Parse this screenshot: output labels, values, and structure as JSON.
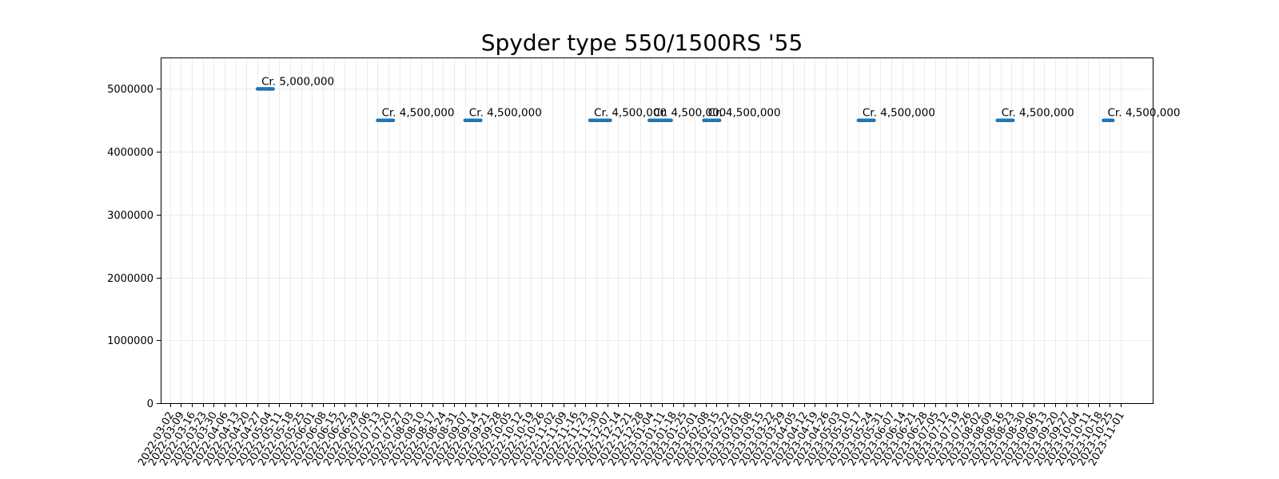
{
  "chart_data": {
    "type": "line",
    "title": "Spyder type 550/1500RS '55",
    "xlabel": "",
    "ylabel": "",
    "ylim": [
      0,
      5500000
    ],
    "y_ticks": [
      0,
      1000000,
      2000000,
      3000000,
      4000000,
      5000000
    ],
    "y_tick_labels": [
      "0",
      "1000000",
      "2000000",
      "3000000",
      "4000000",
      "5000000"
    ],
    "x_tick_labels": [
      "2022-03-02",
      "2022-03-09",
      "2022-03-16",
      "2022-03-23",
      "2022-03-30",
      "2022-04-06",
      "2022-04-13",
      "2022-04-20",
      "2022-04-27",
      "2022-05-04",
      "2022-05-11",
      "2022-05-18",
      "2022-05-25",
      "2022-06-01",
      "2022-06-08",
      "2022-06-15",
      "2022-06-22",
      "2022-06-29",
      "2022-07-06",
      "2022-07-13",
      "2022-07-20",
      "2022-07-27",
      "2022-08-03",
      "2022-08-10",
      "2022-08-17",
      "2022-08-24",
      "2022-08-31",
      "2022-09-07",
      "2022-09-14",
      "2022-09-21",
      "2022-09-28",
      "2022-10-05",
      "2022-10-12",
      "2022-10-19",
      "2022-10-26",
      "2022-11-02",
      "2022-11-09",
      "2022-11-16",
      "2022-11-23",
      "2022-11-30",
      "2022-12-07",
      "2022-12-14",
      "2022-12-21",
      "2022-12-28",
      "2023-01-04",
      "2023-01-11",
      "2023-01-18",
      "2023-01-25",
      "2023-02-01",
      "2023-02-08",
      "2023-02-15",
      "2023-02-22",
      "2023-03-01",
      "2023-03-08",
      "2023-03-15",
      "2023-03-22",
      "2023-03-29",
      "2023-04-05",
      "2023-04-12",
      "2023-04-19",
      "2023-04-26",
      "2023-05-03",
      "2023-05-10",
      "2023-05-17",
      "2023-05-24",
      "2023-05-31",
      "2023-06-07",
      "2023-06-14",
      "2023-06-21",
      "2023-06-28",
      "2023-07-05",
      "2023-07-12",
      "2023-07-19",
      "2023-07-26",
      "2023-08-02",
      "2023-08-09",
      "2023-08-16",
      "2023-08-23",
      "2023-08-30",
      "2023-09-06",
      "2023-09-13",
      "2023-09-20",
      "2023-09-27",
      "2023-10-04",
      "2023-10-11",
      "2023-10-18",
      "2023-10-25",
      "2023-11-01"
    ],
    "xlim": [
      "2022-02-24",
      "2023-11-22"
    ],
    "grid": true,
    "legend": false,
    "series_color": "#1f77b4",
    "segments": [
      {
        "start": "2022-04-27",
        "end": "2022-05-07",
        "value": 5000000,
        "label": "Cr. 5,000,000"
      },
      {
        "start": "2022-07-13",
        "end": "2022-07-23",
        "value": 4500000,
        "label": "Cr. 4,500,000"
      },
      {
        "start": "2022-09-07",
        "end": "2022-09-17",
        "value": 4500000,
        "label": "Cr. 4,500,000"
      },
      {
        "start": "2022-11-26",
        "end": "2022-12-09",
        "value": 4500000,
        "label": "Cr. 4,500,000"
      },
      {
        "start": "2023-01-03",
        "end": "2023-01-17",
        "value": 4500000,
        "label": "Cr. 4,500,000"
      },
      {
        "start": "2023-02-07",
        "end": "2023-02-17",
        "value": 4500000,
        "label": "Cr. 4,500,000"
      },
      {
        "start": "2023-05-17",
        "end": "2023-05-27",
        "value": 4500000,
        "label": "Cr. 4,500,000"
      },
      {
        "start": "2023-08-14",
        "end": "2023-08-24",
        "value": 4500000,
        "label": "Cr. 4,500,000"
      },
      {
        "start": "2023-10-21",
        "end": "2023-10-27",
        "value": 4500000,
        "label": "Cr. 4,500,000"
      }
    ]
  }
}
